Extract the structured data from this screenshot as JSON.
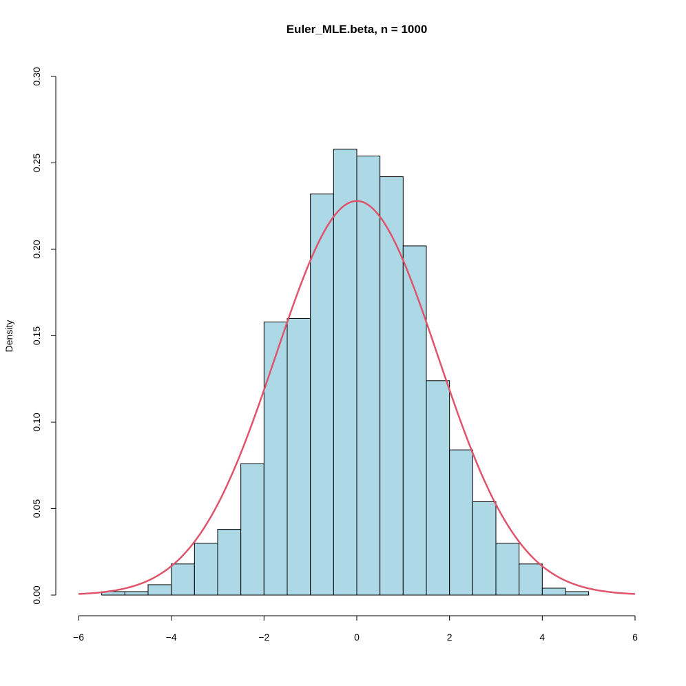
{
  "chart_data": {
    "type": "bar",
    "title": "Euler_MLE.beta, n = 1000",
    "xlabel": "",
    "ylabel": "Density",
    "xlim": [
      -6,
      6
    ],
    "ylim": [
      0,
      0.3
    ],
    "grid": false,
    "bin_width": 0.5,
    "bin_edges": [
      -5.5,
      -5,
      -4.5,
      -4,
      -3.5,
      -3,
      -2.5,
      -2,
      -1.5,
      -1,
      -0.5,
      0,
      0.5,
      1,
      1.5,
      2,
      2.5,
      3,
      3.5,
      4,
      4.5,
      5
    ],
    "values": [
      0.002,
      0.002,
      0.006,
      0.018,
      0.03,
      0.038,
      0.076,
      0.158,
      0.16,
      0.232,
      0.258,
      0.254,
      0.242,
      0.202,
      0.124,
      0.084,
      0.054,
      0.03,
      0.018,
      0.004,
      0.002
    ],
    "bar_color": "#ADD8E6",
    "curve": {
      "type": "normal-density",
      "mean": 0,
      "sd": 1.75,
      "range": [
        -6,
        6
      ],
      "color": "#DF536B"
    },
    "x_ticks": [
      "-6",
      "-4",
      "-2",
      "0",
      "2",
      "4",
      "6"
    ],
    "x_tick_values": [
      -6,
      -4,
      -2,
      0,
      2,
      4,
      6
    ],
    "y_ticks": [
      "0.00",
      "0.05",
      "0.10",
      "0.15",
      "0.20",
      "0.25",
      "0.30"
    ],
    "y_tick_values": [
      0,
      0.05,
      0.1,
      0.15,
      0.2,
      0.25,
      0.3
    ]
  }
}
